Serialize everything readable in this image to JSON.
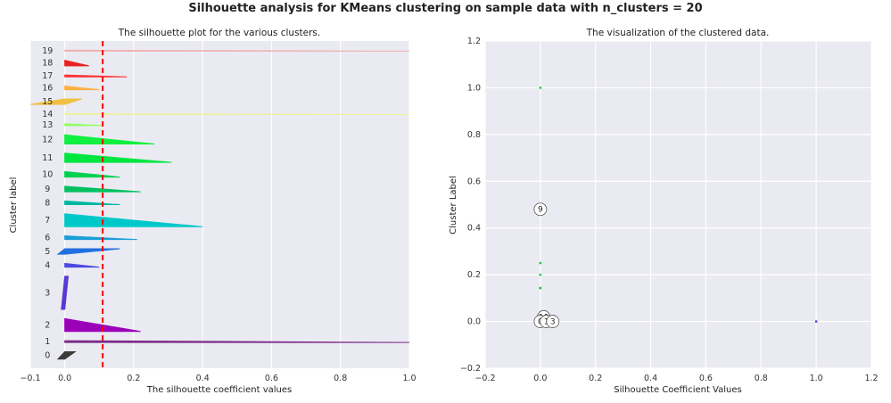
{
  "suptitle": "Silhouette analysis for KMeans clustering on sample data with n_clusters = 20",
  "chart_data": [
    {
      "type": "area",
      "title": "The silhouette plot for the various clusters.",
      "xlabel": "The silhouette coefficient values",
      "ylabel": "Cluster label",
      "xlim": [
        -0.1,
        1.0
      ],
      "xticks": [
        "−0.1",
        "0.0",
        "0.2",
        "0.4",
        "0.6",
        "0.8",
        "1.0"
      ],
      "xtick_values": [
        -0.1,
        0.0,
        0.2,
        0.4,
        0.6,
        0.8,
        1.0
      ],
      "grid": true,
      "average_silhouette": 0.11,
      "clusters": [
        {
          "label": "0",
          "color": "#3a3a3a",
          "min": -0.02,
          "max": 0.03,
          "n": 8
        },
        {
          "label": "1",
          "color": "#7a2a86",
          "min": 0.0,
          "max": 1.0,
          "n": 2
        },
        {
          "label": "2",
          "color": "#9a00b8",
          "min": 0.0,
          "max": 0.22,
          "n": 14
        },
        {
          "label": "3",
          "color": "#5a38d4",
          "min": -0.01,
          "max": 0.01,
          "n": 36
        },
        {
          "label": "4",
          "color": "#4a4ae0",
          "min": 0.0,
          "max": 0.1,
          "n": 4
        },
        {
          "label": "5",
          "color": "#2070e0",
          "min": -0.02,
          "max": 0.16,
          "n": 6
        },
        {
          "label": "6",
          "color": "#1a9ed8",
          "min": 0.0,
          "max": 0.21,
          "n": 4
        },
        {
          "label": "7",
          "color": "#00c8c8",
          "min": 0.0,
          "max": 0.4,
          "n": 14
        },
        {
          "label": "8",
          "color": "#00b8a0",
          "min": 0.0,
          "max": 0.16,
          "n": 4
        },
        {
          "label": "9",
          "color": "#00c060",
          "min": 0.0,
          "max": 0.22,
          "n": 6
        },
        {
          "label": "10",
          "color": "#00d050",
          "min": 0.0,
          "max": 0.16,
          "n": 6
        },
        {
          "label": "11",
          "color": "#00e640",
          "min": 0.0,
          "max": 0.31,
          "n": 10
        },
        {
          "label": "12",
          "color": "#10f040",
          "min": 0.0,
          "max": 0.26,
          "n": 10
        },
        {
          "label": "13",
          "color": "#90ff60",
          "min": 0.0,
          "max": 0.11,
          "n": 2
        },
        {
          "label": "14",
          "color": "#f0f0a0",
          "min": 0.0,
          "max": 1.0,
          "n": 1
        },
        {
          "label": "15",
          "color": "#f0c040",
          "min": -0.1,
          "max": 0.05,
          "n": 6
        },
        {
          "label": "16",
          "color": "#ffb040",
          "min": 0.0,
          "max": 0.1,
          "n": 4
        },
        {
          "label": "17",
          "color": "#ff3030",
          "min": 0.0,
          "max": 0.18,
          "n": 2
        },
        {
          "label": "18",
          "color": "#e82020",
          "min": 0.0,
          "max": 0.07,
          "n": 6
        },
        {
          "label": "19",
          "color": "#f0b0b0",
          "min": 0.0,
          "max": 1.0,
          "n": 1
        }
      ]
    },
    {
      "type": "scatter",
      "title": "The visualization of the clustered data.",
      "xlabel": "Silhouette Coefficient Values",
      "ylabel": "Cluster Label",
      "xlim": [
        -0.2,
        1.2
      ],
      "ylim": [
        -0.2,
        1.2
      ],
      "xticks": [
        "−0.2",
        "0.0",
        "0.2",
        "0.4",
        "0.6",
        "0.8",
        "1.0",
        "1.2"
      ],
      "xtick_values": [
        -0.2,
        0.0,
        0.2,
        0.4,
        0.6,
        0.8,
        1.0,
        1.2
      ],
      "yticks": [
        "−0.2",
        "0.0",
        "0.2",
        "0.4",
        "0.6",
        "0.8",
        "1.0",
        "1.2"
      ],
      "ytick_values": [
        -0.2,
        0.0,
        0.2,
        0.4,
        0.6,
        0.8,
        1.0,
        1.2
      ],
      "grid": true,
      "points": [
        {
          "x": 0.0,
          "y": 1.0,
          "color": "#20c040"
        },
        {
          "x": 0.0,
          "y": 0.25,
          "color": "#20c040"
        },
        {
          "x": 0.0,
          "y": 0.2,
          "color": "#20c040"
        },
        {
          "x": 0.0,
          "y": 0.143,
          "color": "#20c040"
        },
        {
          "x": 0.0,
          "y": 0.143,
          "color": "#20c040"
        },
        {
          "x": 0.0,
          "y": 0.0,
          "color": "#3a2a9a"
        },
        {
          "x": 0.005,
          "y": 0.01,
          "color": "#3a2a9a"
        },
        {
          "x": 1.0,
          "y": 0.0,
          "color": "#5a38d4"
        }
      ],
      "centers": [
        {
          "label": "9",
          "x": 0.0,
          "y": 0.48
        },
        {
          "label": "10",
          "x": 0.012,
          "y": 0.02
        },
        {
          "label": "0",
          "x": 0.0,
          "y": 0.0
        },
        {
          "label": "1",
          "x": 0.022,
          "y": 0.0
        },
        {
          "label": "3",
          "x": 0.045,
          "y": 0.0
        }
      ]
    }
  ]
}
